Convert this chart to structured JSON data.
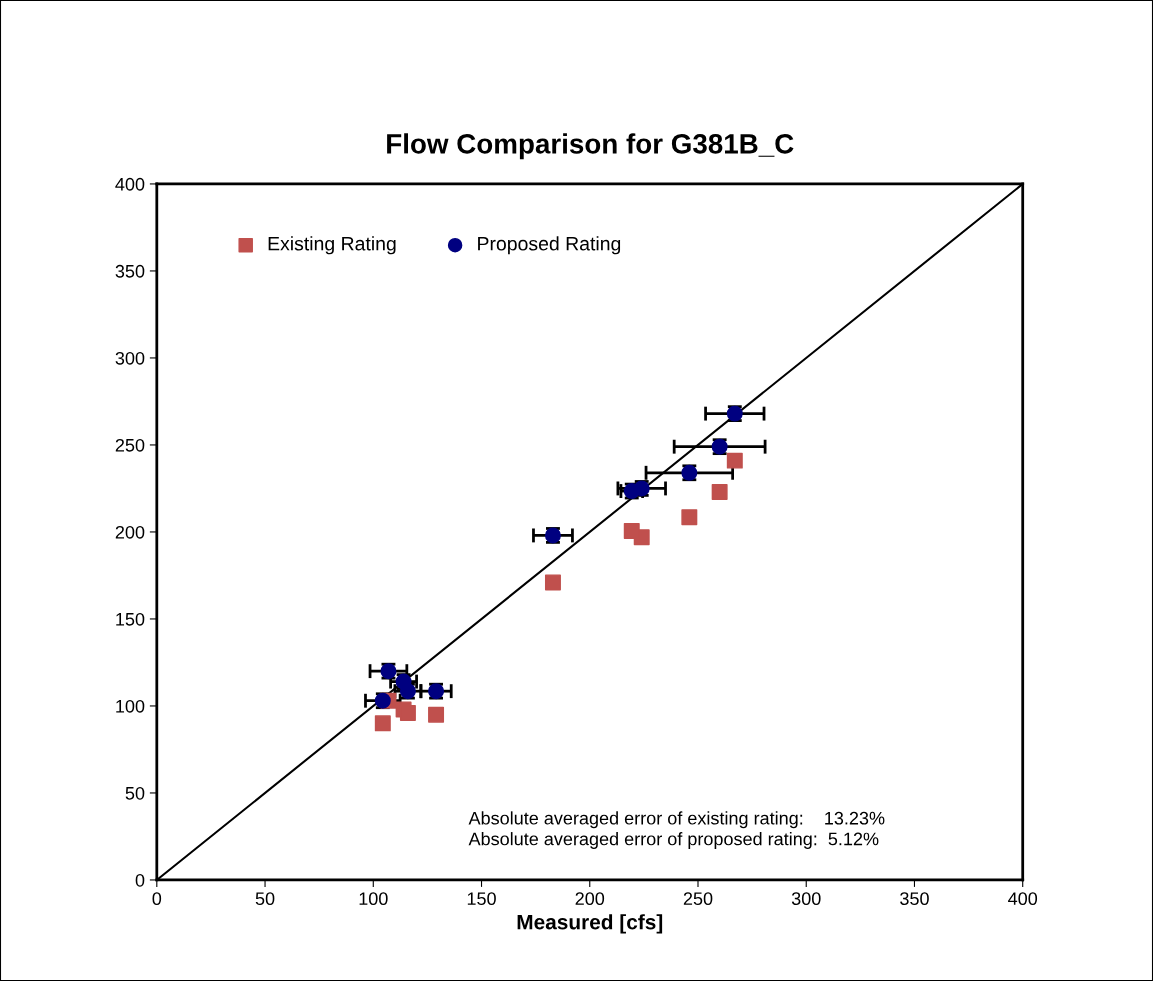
{
  "chart_data": {
    "type": "scatter",
    "title": "Flow Comparison for G381B_C",
    "xlabel": "Measured [cfs]",
    "xlim": [
      0,
      400
    ],
    "ylim": [
      0,
      400
    ],
    "xticks": [
      0,
      50,
      100,
      150,
      200,
      250,
      300,
      350,
      400
    ],
    "yticks": [
      0,
      50,
      100,
      150,
      200,
      250,
      300,
      350,
      400
    ],
    "grid": false,
    "legend": "top left",
    "series": [
      {
        "type": "line",
        "color": "#000000",
        "marker": "none",
        "x": [
          0,
          400
        ],
        "values": [
          0,
          400
        ]
      },
      {
        "name": "Existing Rating",
        "color": "#c0504d",
        "marker": "square",
        "x": [
          267,
          260,
          246,
          224,
          219.4,
          183,
          107,
          114,
          116,
          129,
          104.4
        ],
        "values": [
          241,
          223,
          208.5,
          197,
          200.5,
          171,
          103,
          98,
          96,
          95,
          90
        ]
      },
      {
        "name": "Proposed Rating",
        "color": "#000080",
        "marker": "circle",
        "x": [
          267,
          260,
          246,
          224,
          219.4,
          183,
          107,
          114,
          116,
          129,
          104.4
        ],
        "values": [
          268,
          249,
          234,
          225,
          223.5,
          198,
          120,
          114,
          108.5,
          108.5,
          103
        ],
        "errors": [
          4,
          4,
          4,
          4,
          4,
          4,
          4,
          4,
          4,
          4,
          4
        ],
        "xerrors": [
          13.5,
          21,
          20,
          11,
          5,
          9,
          8.5,
          6,
          6,
          7,
          8
        ]
      }
    ],
    "annotations": [
      "Absolute averaged error of existing rating:    13.23%\nAbsolute averaged error of proposed rating:  5.12%"
    ]
  }
}
